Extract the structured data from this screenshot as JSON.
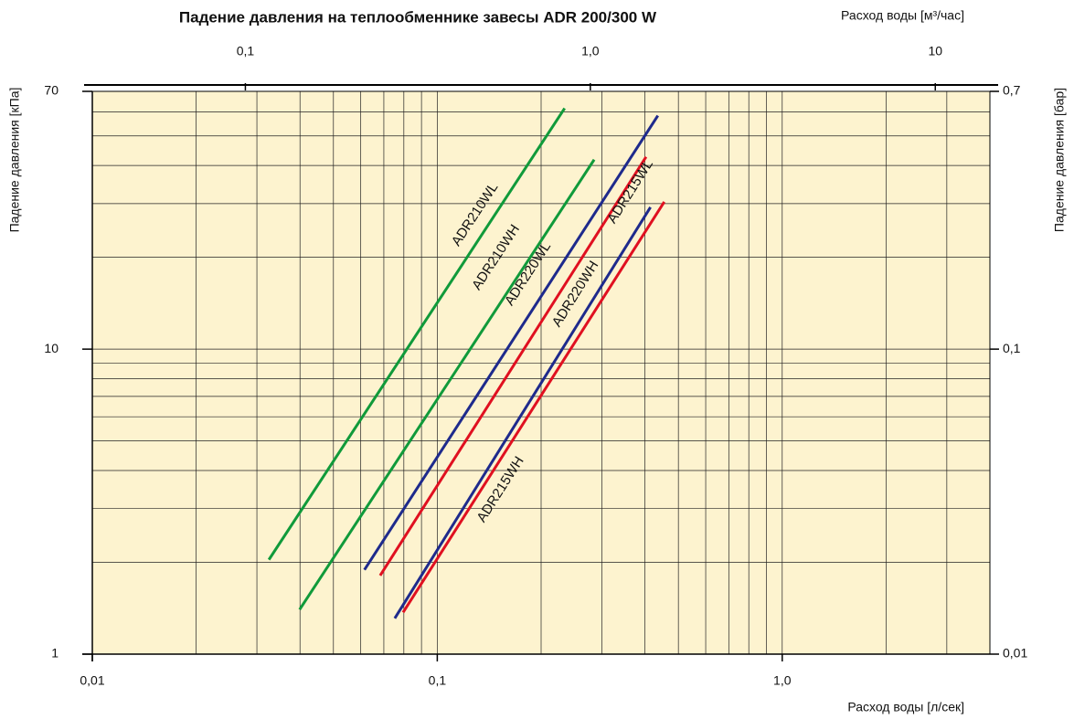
{
  "chart_data": {
    "type": "line",
    "xscale": "log",
    "yscale": "log",
    "grid": true,
    "title": "Падение давления на теплообменнике завесы ADR 200/300 W",
    "xlabel": "Расход воды [л/сек]",
    "ylabel": "Падение давления [кПа]",
    "x2label": "Расход воды [м³/час]",
    "y2label": "Падение давления [бар]",
    "xlim": [
      0.01,
      4
    ],
    "ylim": [
      1,
      70
    ],
    "xticks": [
      {
        "value": 0.01,
        "label": "0,01"
      },
      {
        "value": 0.1,
        "label": "0,1"
      },
      {
        "value": 1,
        "label": "1,0"
      }
    ],
    "yticks": [
      1,
      10,
      70
    ],
    "x2lim": [
      0.036,
      14.4
    ],
    "x2ticks": [
      {
        "value": 0.1,
        "label": "0,1"
      },
      {
        "value": 1,
        "label": "1,0"
      },
      10
    ],
    "y2lim": [
      0.01,
      0.7
    ],
    "y2ticks": [
      {
        "value": 0.01,
        "label": "0,01"
      },
      {
        "value": 0.1,
        "label": "0,1"
      },
      {
        "value": 0.7,
        "label": "0,7"
      }
    ],
    "series": [
      {
        "name": "ADR210WL",
        "color": "#109a3a",
        "x": [
          0.0325,
          0.234
        ],
        "values": [
          2.04,
          61.6
        ]
      },
      {
        "name": "ADR210WH",
        "color": "#109a3a",
        "x": [
          0.0399,
          0.285
        ],
        "values": [
          1.4,
          41.8
        ]
      },
      {
        "name": "ADR220WL",
        "color": "#1e2a8c",
        "x": [
          0.0615,
          0.436
        ],
        "values": [
          1.89,
          58.3
        ]
      },
      {
        "name": "ADR215WL",
        "color": "#e01020",
        "x": [
          0.0683,
          0.403
        ],
        "values": [
          1.81,
          42.7
        ]
      },
      {
        "name": "ADR220WH",
        "color": "#1e2a8c",
        "x": [
          0.0753,
          0.415
        ],
        "values": [
          1.31,
          29.2
        ]
      },
      {
        "name": "ADR215WH",
        "color": "#e01020",
        "x": [
          0.0796,
          0.455
        ],
        "values": [
          1.37,
          30.4
        ]
      }
    ]
  }
}
